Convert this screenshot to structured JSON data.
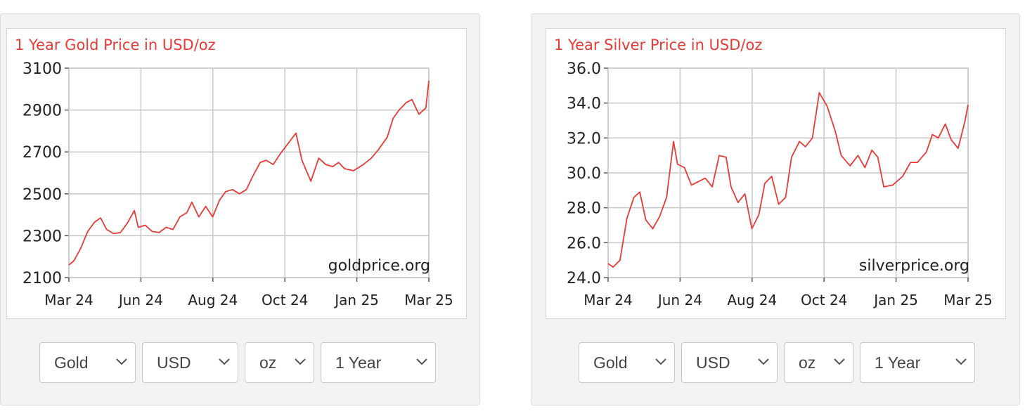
{
  "colors": {
    "line": "#e83a36",
    "title": "#e83a36",
    "grid": "#c8c8c8",
    "axis_text": "#222222"
  },
  "chart_data": [
    {
      "type": "line",
      "title": "1 Year Gold Price in USD/oz",
      "watermark": "goldprice.org",
      "x_ticks": [
        "Mar 24",
        "Jun 24",
        "Aug 24",
        "Oct 24",
        "Jan 25",
        "Mar 25"
      ],
      "y_ticks": [
        "3100",
        "2900",
        "2700",
        "2500",
        "2300",
        "2100"
      ],
      "ylim": [
        2100,
        3100
      ],
      "grid": true,
      "series": [
        {
          "color": "#e83a36",
          "x": [
            "2024-03-15",
            "2024-03-20",
            "2024-03-27",
            "2024-04-03",
            "2024-04-10",
            "2024-04-16",
            "2024-04-22",
            "2024-04-29",
            "2024-05-06",
            "2024-05-13",
            "2024-05-20",
            "2024-05-24",
            "2024-05-31",
            "2024-06-07",
            "2024-06-14",
            "2024-06-21",
            "2024-06-28",
            "2024-07-05",
            "2024-07-12",
            "2024-07-17",
            "2024-07-24",
            "2024-07-31",
            "2024-08-07",
            "2024-08-14",
            "2024-08-20",
            "2024-08-27",
            "2024-09-03",
            "2024-09-10",
            "2024-09-16",
            "2024-09-24",
            "2024-09-30",
            "2024-10-07",
            "2024-10-14",
            "2024-10-22",
            "2024-10-30",
            "2024-11-05",
            "2024-11-14",
            "2024-11-22",
            "2024-11-29",
            "2024-12-06",
            "2024-12-12",
            "2024-12-18",
            "2024-12-27",
            "2025-01-06",
            "2025-01-14",
            "2025-01-21",
            "2025-01-30",
            "2025-02-05",
            "2025-02-11",
            "2025-02-18",
            "2025-02-24",
            "2025-03-03",
            "2025-03-10",
            "2025-03-13"
          ],
          "y": [
            2160,
            2180,
            2240,
            2320,
            2365,
            2385,
            2330,
            2310,
            2315,
            2360,
            2420,
            2340,
            2350,
            2320,
            2315,
            2340,
            2330,
            2390,
            2410,
            2460,
            2390,
            2440,
            2390,
            2470,
            2510,
            2520,
            2500,
            2520,
            2580,
            2650,
            2660,
            2640,
            2690,
            2740,
            2790,
            2660,
            2560,
            2670,
            2640,
            2630,
            2650,
            2620,
            2610,
            2640,
            2670,
            2710,
            2770,
            2860,
            2900,
            2935,
            2950,
            2880,
            2910,
            3040
          ]
        }
      ]
    },
    {
      "type": "line",
      "title": "1 Year Silver Price in USD/oz",
      "watermark": "silverprice.org",
      "x_ticks": [
        "Mar 24",
        "Jun 24",
        "Aug 24",
        "Oct 24",
        "Jan 25",
        "Mar 25"
      ],
      "y_ticks": [
        "36.0",
        "34.0",
        "32.0",
        "30.0",
        "28.0",
        "26.0",
        "24.0"
      ],
      "ylim": [
        24,
        36
      ],
      "grid": true,
      "series": [
        {
          "color": "#e83a36",
          "x": [
            "2024-03-15",
            "2024-03-20",
            "2024-03-27",
            "2024-04-03",
            "2024-04-10",
            "2024-04-16",
            "2024-04-22",
            "2024-04-29",
            "2024-05-06",
            "2024-05-13",
            "2024-05-20",
            "2024-05-24",
            "2024-05-31",
            "2024-06-07",
            "2024-06-14",
            "2024-06-21",
            "2024-06-28",
            "2024-07-05",
            "2024-07-12",
            "2024-07-17",
            "2024-07-24",
            "2024-07-31",
            "2024-08-07",
            "2024-08-14",
            "2024-08-20",
            "2024-08-27",
            "2024-09-03",
            "2024-09-10",
            "2024-09-16",
            "2024-09-24",
            "2024-09-30",
            "2024-10-07",
            "2024-10-14",
            "2024-10-22",
            "2024-10-30",
            "2024-11-05",
            "2024-11-14",
            "2024-11-22",
            "2024-11-29",
            "2024-12-06",
            "2024-12-12",
            "2024-12-18",
            "2024-12-27",
            "2025-01-06",
            "2025-01-14",
            "2025-01-21",
            "2025-01-30",
            "2025-02-05",
            "2025-02-11",
            "2025-02-18",
            "2025-02-24",
            "2025-03-03",
            "2025-03-10",
            "2025-03-13"
          ],
          "y": [
            24.8,
            24.6,
            25.0,
            27.4,
            28.6,
            28.9,
            27.3,
            26.8,
            27.5,
            28.6,
            31.8,
            30.5,
            30.3,
            29.3,
            29.5,
            29.7,
            29.2,
            31.0,
            30.9,
            29.2,
            28.3,
            28.8,
            26.8,
            27.6,
            29.4,
            29.8,
            28.2,
            28.6,
            30.9,
            31.8,
            31.5,
            32.0,
            34.6,
            33.8,
            32.4,
            31.0,
            30.4,
            31.0,
            30.3,
            31.3,
            30.9,
            29.2,
            29.3,
            29.8,
            30.6,
            30.6,
            31.2,
            32.2,
            32.0,
            32.8,
            31.9,
            31.4,
            33.0,
            33.9
          ]
        }
      ]
    }
  ],
  "widgets": [
    {
      "selects": [
        {
          "value": "Gold"
        },
        {
          "value": "USD"
        },
        {
          "value": "oz"
        },
        {
          "value": "1 Year"
        }
      ]
    },
    {
      "selects": [
        {
          "value": "Gold"
        },
        {
          "value": "USD"
        },
        {
          "value": "oz"
        },
        {
          "value": "1 Year"
        }
      ]
    }
  ]
}
